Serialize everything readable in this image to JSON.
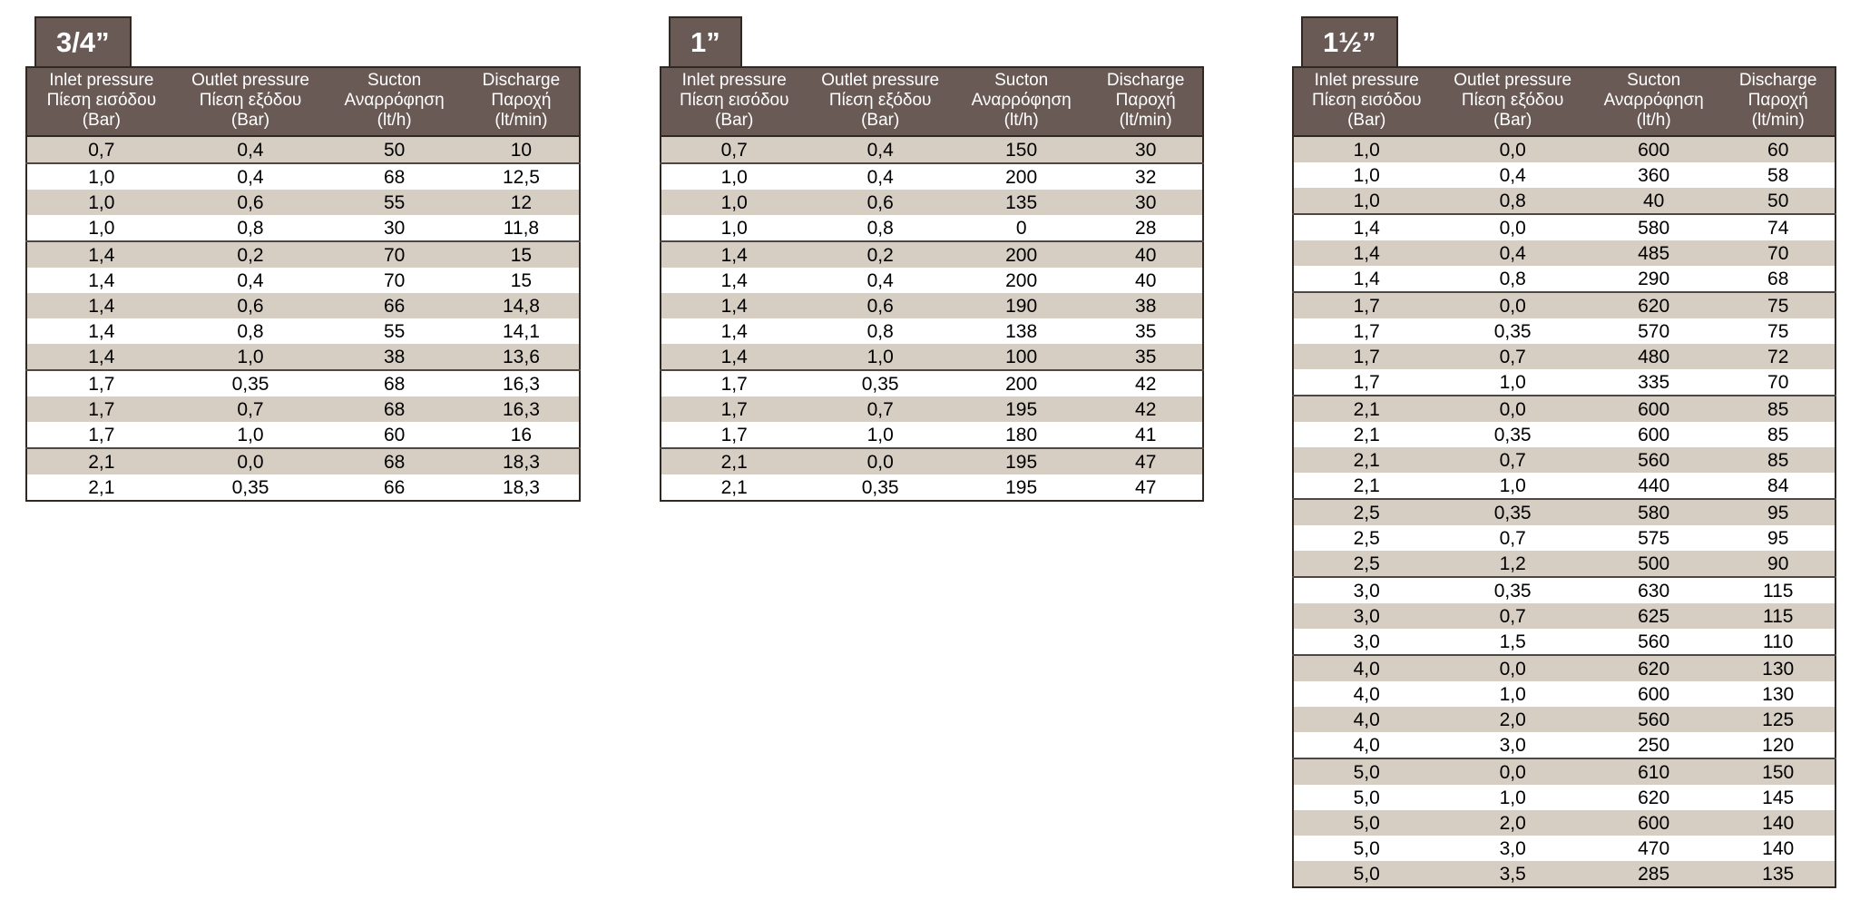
{
  "colors": {
    "header_bg": "#6a5a56",
    "stripe_bg": "#d6cec3",
    "row_bg": "#ffffff",
    "border": "#2f2823",
    "group_separator": "#4f4742",
    "header_text": "#ffffff",
    "data_text": "#000000"
  },
  "column_headers": [
    {
      "en": "Inlet pressure",
      "el": "Πίεση εισόδου",
      "unit": "(Bar)"
    },
    {
      "en": "Outlet pressure",
      "el": "Πίεση εξόδου",
      "unit": "(Bar)"
    },
    {
      "en": "Sucton",
      "el": "Αναρρόφηση",
      "unit": "(lt/h)"
    },
    {
      "en": "Discharge",
      "el": "Παροχή",
      "unit": "(lt/min)"
    }
  ],
  "tables": [
    {
      "size_label": "3/4”",
      "rows": [
        [
          "0,7",
          "0,4",
          "50",
          "10"
        ],
        [
          "1,0",
          "0,4",
          "68",
          "12,5"
        ],
        [
          "1,0",
          "0,6",
          "55",
          "12"
        ],
        [
          "1,0",
          "0,8",
          "30",
          "11,8"
        ],
        [
          "1,4",
          "0,2",
          "70",
          "15"
        ],
        [
          "1,4",
          "0,4",
          "70",
          "15"
        ],
        [
          "1,4",
          "0,6",
          "66",
          "14,8"
        ],
        [
          "1,4",
          "0,8",
          "55",
          "14,1"
        ],
        [
          "1,4",
          "1,0",
          "38",
          "13,6"
        ],
        [
          "1,7",
          "0,35",
          "68",
          "16,3"
        ],
        [
          "1,7",
          "0,7",
          "68",
          "16,3"
        ],
        [
          "1,7",
          "1,0",
          "60",
          "16"
        ],
        [
          "2,1",
          "0,0",
          "68",
          "18,3"
        ],
        [
          "2,1",
          "0,35",
          "66",
          "18,3"
        ]
      ]
    },
    {
      "size_label": "1”",
      "rows": [
        [
          "0,7",
          "0,4",
          "150",
          "30"
        ],
        [
          "1,0",
          "0,4",
          "200",
          "32"
        ],
        [
          "1,0",
          "0,6",
          "135",
          "30"
        ],
        [
          "1,0",
          "0,8",
          "0",
          "28"
        ],
        [
          "1,4",
          "0,2",
          "200",
          "40"
        ],
        [
          "1,4",
          "0,4",
          "200",
          "40"
        ],
        [
          "1,4",
          "0,6",
          "190",
          "38"
        ],
        [
          "1,4",
          "0,8",
          "138",
          "35"
        ],
        [
          "1,4",
          "1,0",
          "100",
          "35"
        ],
        [
          "1,7",
          "0,35",
          "200",
          "42"
        ],
        [
          "1,7",
          "0,7",
          "195",
          "42"
        ],
        [
          "1,7",
          "1,0",
          "180",
          "41"
        ],
        [
          "2,1",
          "0,0",
          "195",
          "47"
        ],
        [
          "2,1",
          "0,35",
          "195",
          "47"
        ]
      ]
    },
    {
      "size_label": "1½”",
      "rows": [
        [
          "1,0",
          "0,0",
          "600",
          "60"
        ],
        [
          "1,0",
          "0,4",
          "360",
          "58"
        ],
        [
          "1,0",
          "0,8",
          "40",
          "50"
        ],
        [
          "1,4",
          "0,0",
          "580",
          "74"
        ],
        [
          "1,4",
          "0,4",
          "485",
          "70"
        ],
        [
          "1,4",
          "0,8",
          "290",
          "68"
        ],
        [
          "1,7",
          "0,0",
          "620",
          "75"
        ],
        [
          "1,7",
          "0,35",
          "570",
          "75"
        ],
        [
          "1,7",
          "0,7",
          "480",
          "72"
        ],
        [
          "1,7",
          "1,0",
          "335",
          "70"
        ],
        [
          "2,1",
          "0,0",
          "600",
          "85"
        ],
        [
          "2,1",
          "0,35",
          "600",
          "85"
        ],
        [
          "2,1",
          "0,7",
          "560",
          "85"
        ],
        [
          "2,1",
          "1,0",
          "440",
          "84"
        ],
        [
          "2,5",
          "0,35",
          "580",
          "95"
        ],
        [
          "2,5",
          "0,7",
          "575",
          "95"
        ],
        [
          "2,5",
          "1,2",
          "500",
          "90"
        ],
        [
          "3,0",
          "0,35",
          "630",
          "115"
        ],
        [
          "3,0",
          "0,7",
          "625",
          "115"
        ],
        [
          "3,0",
          "1,5",
          "560",
          "110"
        ],
        [
          "4,0",
          "0,0",
          "620",
          "130"
        ],
        [
          "4,0",
          "1,0",
          "600",
          "130"
        ],
        [
          "4,0",
          "2,0",
          "560",
          "125"
        ],
        [
          "4,0",
          "3,0",
          "250",
          "120"
        ],
        [
          "5,0",
          "0,0",
          "610",
          "150"
        ],
        [
          "5,0",
          "1,0",
          "620",
          "145"
        ],
        [
          "5,0",
          "2,0",
          "600",
          "140"
        ],
        [
          "5,0",
          "3,0",
          "470",
          "140"
        ],
        [
          "5,0",
          "3,5",
          "285",
          "135"
        ]
      ]
    }
  ]
}
